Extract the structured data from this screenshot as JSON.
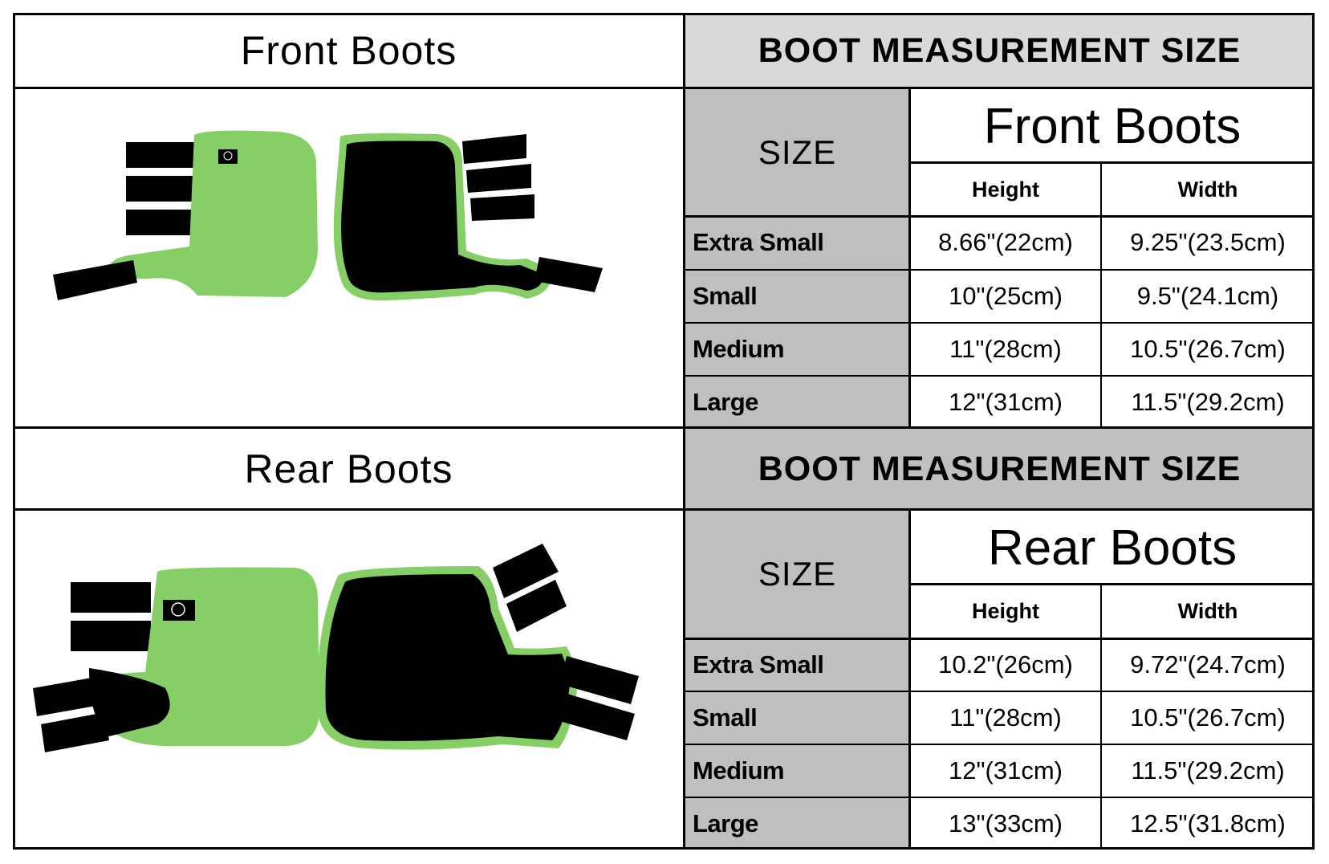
{
  "front": {
    "left_title": "Front Boots",
    "header": "BOOT MEASUREMENT SIZE",
    "size_label": "SIZE",
    "table_title": "Front Boots",
    "columns": [
      "Height",
      "Width"
    ],
    "rows": [
      {
        "size": "Extra Small",
        "height": "8.66\"(22cm)",
        "width": "9.25\"(23.5cm)"
      },
      {
        "size": "Small",
        "height": "10\"(25cm)",
        "width": "9.5\"(24.1cm)"
      },
      {
        "size": "Medium",
        "height": "11\"(28cm)",
        "width": "10.5\"(26.7cm)"
      },
      {
        "size": "Large",
        "height": "12\"(31cm)",
        "width": "11.5\"(29.2cm)"
      }
    ]
  },
  "rear": {
    "left_title": "Rear Boots",
    "header": "BOOT MEASUREMENT SIZE",
    "size_label": "SIZE",
    "table_title": "Rear Boots",
    "columns": [
      "Height",
      "Width"
    ],
    "rows": [
      {
        "size": "Extra Small",
        "height": "10.2\"(26cm)",
        "width": "9.72\"(24.7cm)"
      },
      {
        "size": "Small",
        "height": "11\"(28cm)",
        "width": "10.5\"(26.7cm)"
      },
      {
        "size": "Medium",
        "height": "12\"(31cm)",
        "width": "11.5\"(29.2cm)"
      },
      {
        "size": "Large",
        "height": "13\"(33cm)",
        "width": "12.5\"(31.8cm)"
      }
    ]
  },
  "colors": {
    "boot_green": "#86cf66",
    "strap": "#000000",
    "header_light": "#d9d9d9",
    "header_dark": "#c0c0c0",
    "size_column": "#bfbfbf"
  }
}
